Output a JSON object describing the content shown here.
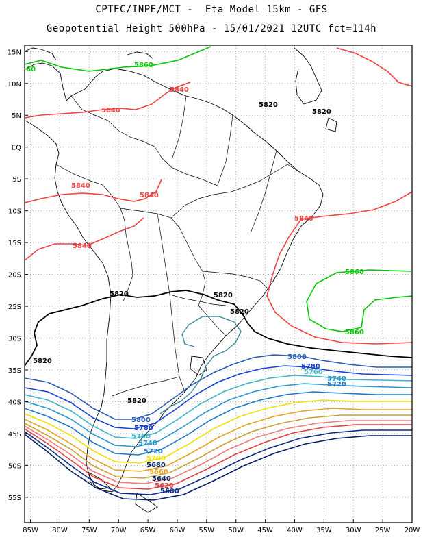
{
  "title_line1": "CPTEC/INPE/MCT -  Eta Model 15km - GFS",
  "title_line2": "Geopotential Height 500hPa - 15/01/2021 12UTC fct=114h",
  "map": {
    "lon_range": [
      -86,
      -20
    ],
    "lat_range": [
      16,
      -59
    ],
    "gridlines": true,
    "lon_ticks": [
      "85W",
      "80W",
      "75W",
      "70W",
      "65W",
      "60W",
      "55W",
      "50W",
      "45W",
      "40W",
      "35W",
      "30W",
      "25W",
      "20W"
    ],
    "lat_ticks": [
      "15N",
      "10N",
      "5N",
      "EQ",
      "5S",
      "10S",
      "15S",
      "20S",
      "25S",
      "30S",
      "35S",
      "40S",
      "45S",
      "50S",
      "55S"
    ]
  },
  "contour_colors": {
    "5580": "#001e64",
    "5600": "#0a2888",
    "5620": "#e23c3c",
    "5640": "#f07878",
    "5660": "#c8a030",
    "5680": "#e8a020",
    "5700": "#f0e000",
    "5720": "#1e78c8",
    "5740": "#2896d2",
    "5760": "#3cb4c8",
    "5780": "#1440dc",
    "5800": "#285ab4",
    "5820": "#000000",
    "5840": "#f04040",
    "5860": "#00c800"
  },
  "labels": {
    "l5860_nw": "5860",
    "l5860_edge": "60",
    "l5840_a": "5840",
    "l5840_b": "5840",
    "l5840_c": "5840",
    "l5840_d": "5840",
    "l5840_e": "5840",
    "l5840_f": "5840",
    "l5820_a": "5820",
    "l5820_b": "5820",
    "l5820_c": "5820",
    "l5820_d": "5820",
    "l5820_e": "5820",
    "l5820_f": "5820",
    "l5820_g": "5820",
    "l5860_e1": "5860",
    "l5860_e2": "5860",
    "l5800_e": "5800",
    "l5780_e": "5780",
    "l5760_e": "5760",
    "l5740_e": "5740",
    "l5720_e": "5720",
    "l5800_w": "5800",
    "l5780_w": "5780",
    "l5760_w": "5760",
    "l5740_w": "5740",
    "l5720_w": "5720",
    "l5700_w": "5700",
    "l5680_w": "5680",
    "l5660_w": "5660",
    "l5640_w": "5640",
    "l5620_w": "5620",
    "l5600_w": "5600"
  }
}
